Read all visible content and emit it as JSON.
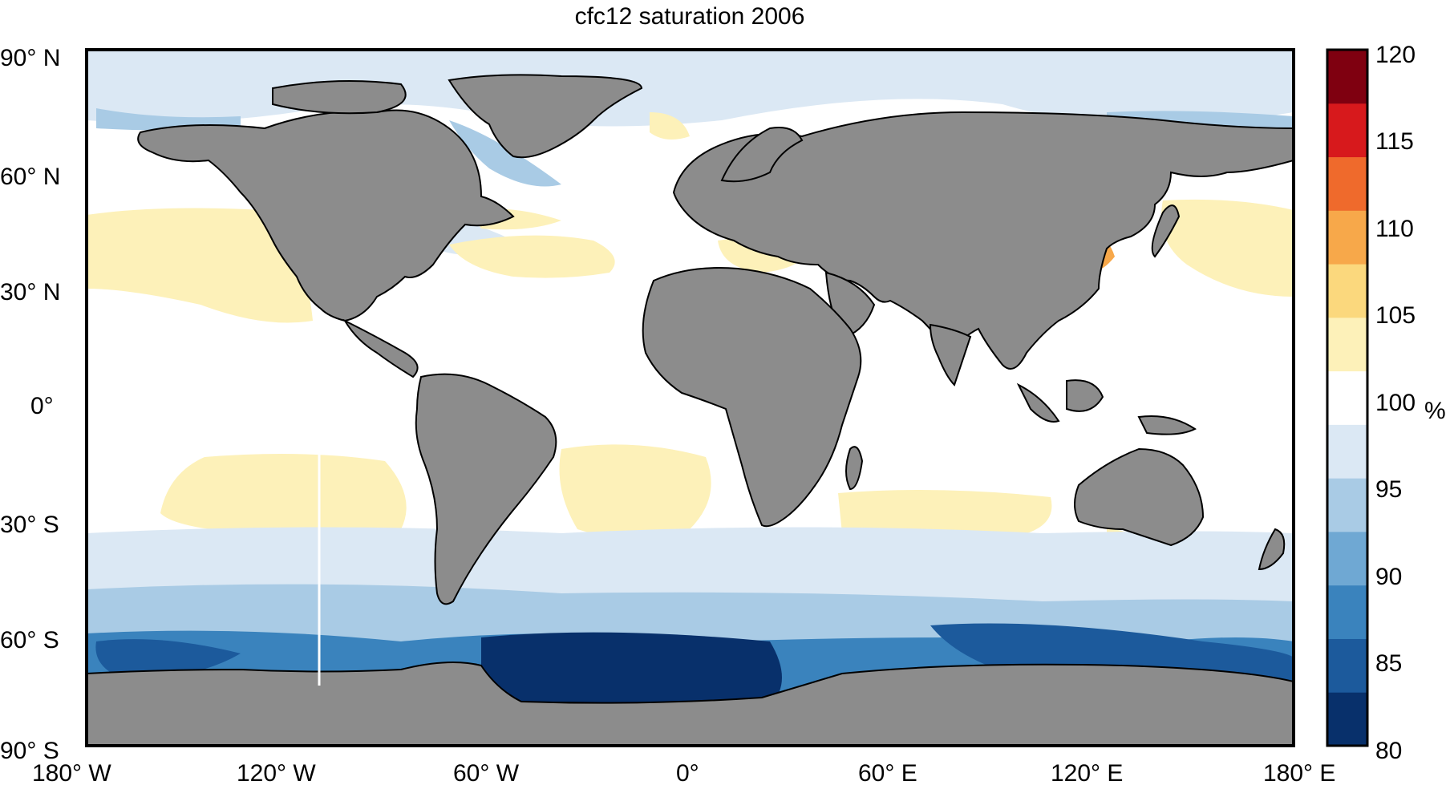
{
  "title": "cfc12 saturation 2006",
  "map": {
    "y_ticks": [
      "90° N",
      "60° N",
      "30° N",
      "0°",
      "30° S",
      "60° S",
      "90° S"
    ],
    "x_ticks": [
      "180° W",
      "120° W",
      "60° W",
      "0°",
      "60° E",
      "120° E",
      "180° E"
    ],
    "land_color": "#8c8c8c"
  },
  "colorbar": {
    "unit": "%",
    "ticks": [
      "120",
      "115",
      "110",
      "105",
      "100",
      "95",
      "90",
      "85",
      "80"
    ],
    "range": [
      80,
      120
    ],
    "colors_low_to_high": [
      "#08306b",
      "#1c5a9c",
      "#3a83bd",
      "#6fa8d3",
      "#a9cbe5",
      "#dbe8f4",
      "#ffffff",
      "#fdf1b9",
      "#fbd87d",
      "#f7a84a",
      "#ef6a2c",
      "#d7191c",
      "#7f0010"
    ]
  }
}
